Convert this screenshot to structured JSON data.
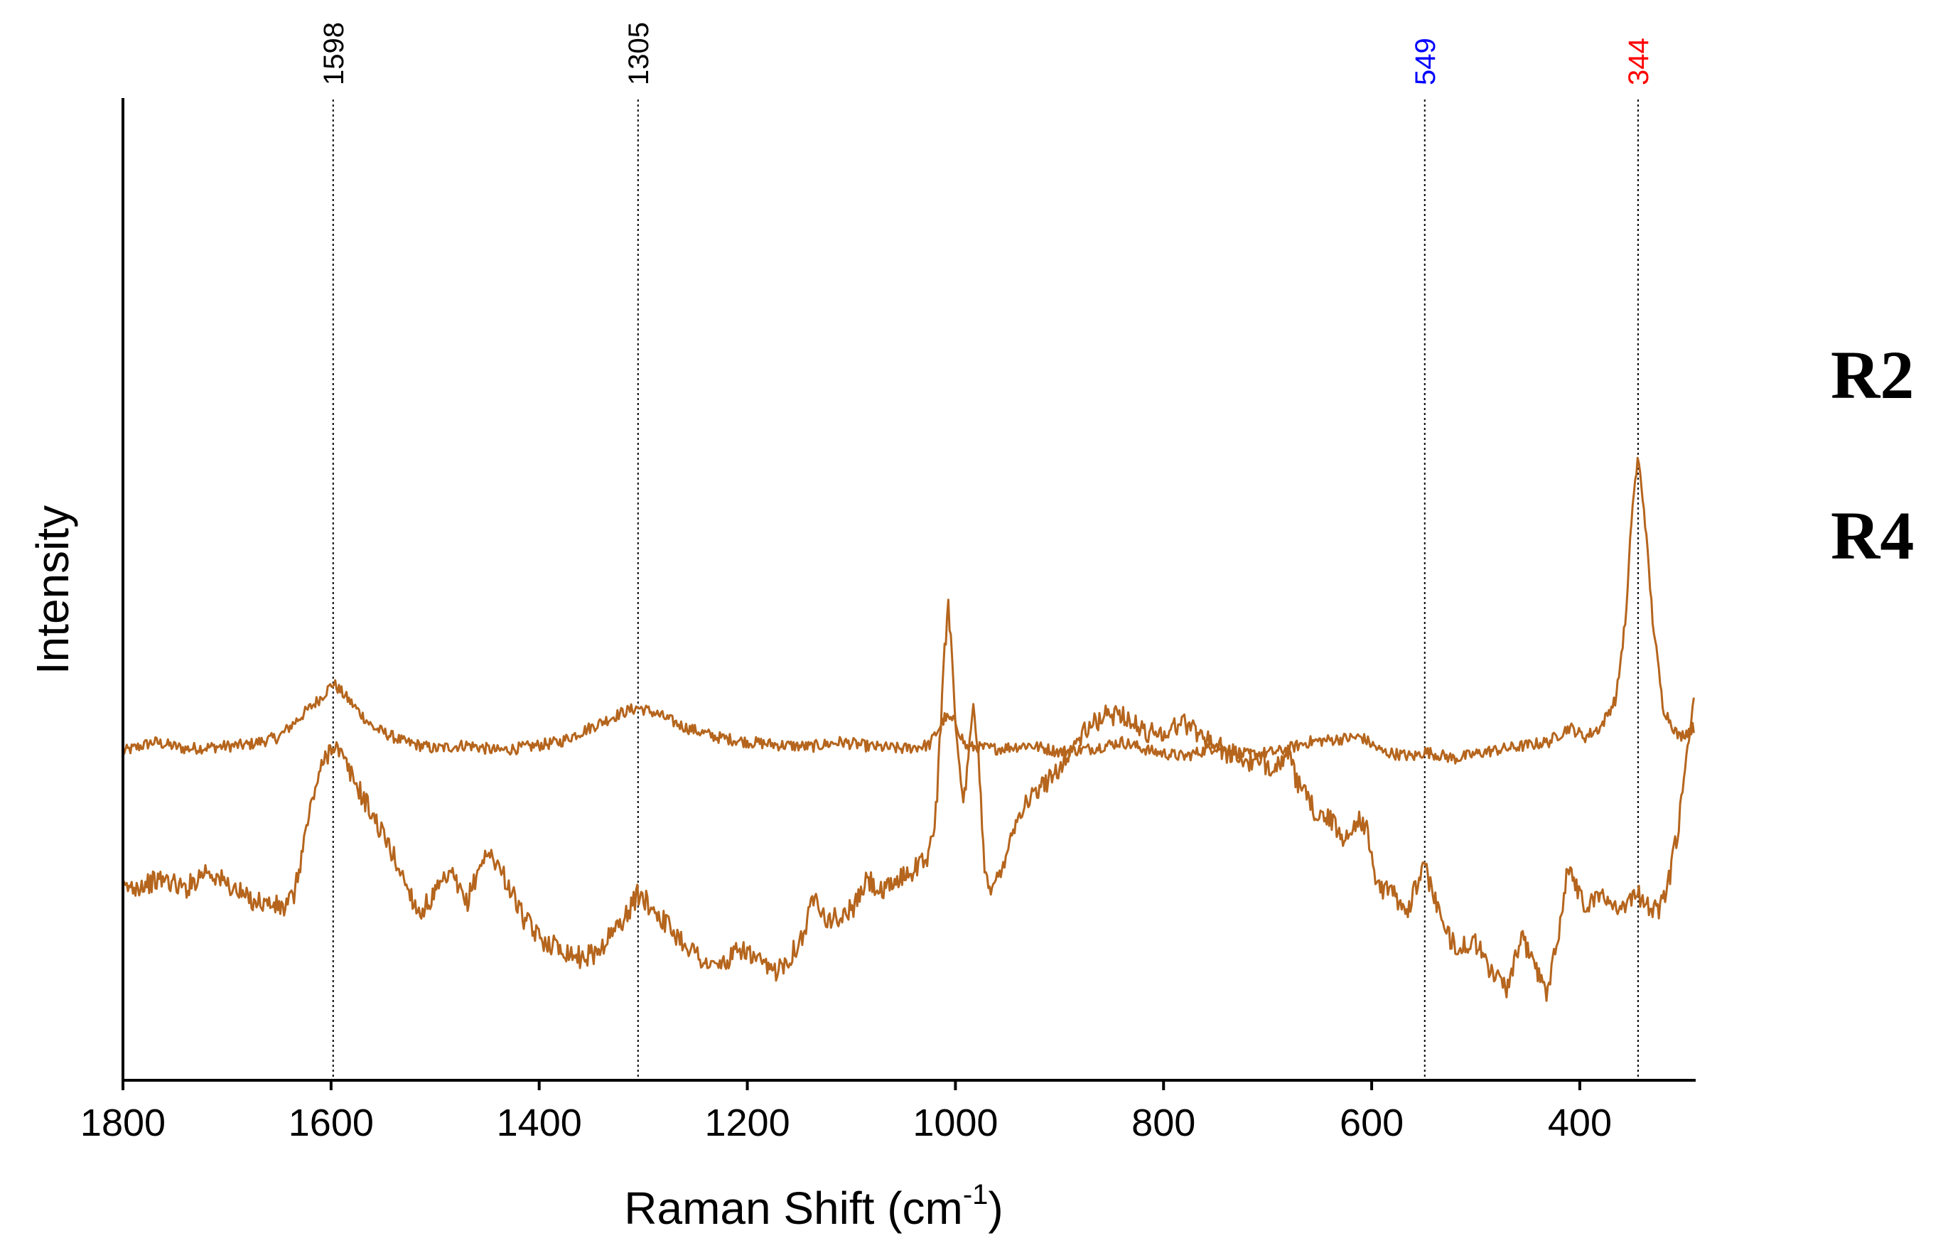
{
  "chart_data": {
    "type": "line",
    "xlabel": "Raman Shift (cm",
    "xlabel_sup": "-1",
    "xlabel_close": ")",
    "ylabel": "Intensity",
    "xlim": [
      1800,
      290
    ],
    "x_reversed": true,
    "y_ticks_shown": false,
    "grid": false,
    "x_ticks": [
      {
        "value": 1800,
        "label": "1800"
      },
      {
        "value": 1600,
        "label": "1600"
      },
      {
        "value": 1400,
        "label": "1400"
      },
      {
        "value": 1200,
        "label": "1200"
      },
      {
        "value": 1000,
        "label": "1000"
      },
      {
        "value": 800,
        "label": "800"
      },
      {
        "value": 600,
        "label": "600"
      },
      {
        "value": 400,
        "label": "400"
      }
    ],
    "peak_markers": [
      {
        "value": 1598,
        "label": "1598",
        "color": "#000000"
      },
      {
        "value": 1305,
        "label": "1305",
        "color": "#000000"
      },
      {
        "value": 549,
        "label": "549",
        "color": "#0000ff"
      },
      {
        "value": 344,
        "label": "344",
        "color": "#ff0000"
      }
    ],
    "line_color": "#b5651d",
    "series": [
      {
        "name": "R2",
        "points": [
          [
            1800,
            0.335
          ],
          [
            1770,
            0.345
          ],
          [
            1740,
            0.338
          ],
          [
            1710,
            0.34
          ],
          [
            1680,
            0.342
          ],
          [
            1650,
            0.35
          ],
          [
            1630,
            0.37
          ],
          [
            1610,
            0.39
          ],
          [
            1598,
            0.405
          ],
          [
            1585,
            0.39
          ],
          [
            1560,
            0.36
          ],
          [
            1530,
            0.345
          ],
          [
            1500,
            0.338
          ],
          [
            1470,
            0.342
          ],
          [
            1440,
            0.336
          ],
          [
            1410,
            0.34
          ],
          [
            1380,
            0.345
          ],
          [
            1350,
            0.36
          ],
          [
            1320,
            0.375
          ],
          [
            1305,
            0.38
          ],
          [
            1290,
            0.375
          ],
          [
            1260,
            0.36
          ],
          [
            1230,
            0.35
          ],
          [
            1200,
            0.345
          ],
          [
            1170,
            0.342
          ],
          [
            1140,
            0.34
          ],
          [
            1110,
            0.345
          ],
          [
            1080,
            0.34
          ],
          [
            1050,
            0.338
          ],
          [
            1025,
            0.342
          ],
          [
            1010,
            0.37
          ],
          [
            1000,
            0.365
          ],
          [
            990,
            0.34
          ],
          [
            960,
            0.338
          ],
          [
            930,
            0.342
          ],
          [
            900,
            0.335
          ],
          [
            870,
            0.338
          ],
          [
            840,
            0.345
          ],
          [
            810,
            0.335
          ],
          [
            780,
            0.33
          ],
          [
            750,
            0.34
          ],
          [
            720,
            0.332
          ],
          [
            690,
            0.335
          ],
          [
            660,
            0.345
          ],
          [
            630,
            0.348
          ],
          [
            610,
            0.35
          ],
          [
            590,
            0.335
          ],
          [
            560,
            0.33
          ],
          [
            549,
            0.335
          ],
          [
            520,
            0.328
          ],
          [
            490,
            0.335
          ],
          [
            460,
            0.34
          ],
          [
            430,
            0.345
          ],
          [
            410,
            0.36
          ],
          [
            395,
            0.35
          ],
          [
            380,
            0.36
          ],
          [
            365,
            0.39
          ],
          [
            355,
            0.48
          ],
          [
            350,
            0.58
          ],
          [
            344,
            0.635
          ],
          [
            338,
            0.58
          ],
          [
            330,
            0.47
          ],
          [
            320,
            0.38
          ],
          [
            305,
            0.35
          ],
          [
            290,
            0.36
          ]
        ]
      },
      {
        "name": "R4",
        "points": [
          [
            1800,
            0.195
          ],
          [
            1780,
            0.2
          ],
          [
            1760,
            0.205
          ],
          [
            1740,
            0.195
          ],
          [
            1720,
            0.215
          ],
          [
            1700,
            0.2
          ],
          [
            1680,
            0.185
          ],
          [
            1660,
            0.18
          ],
          [
            1645,
            0.175
          ],
          [
            1635,
            0.19
          ],
          [
            1625,
            0.25
          ],
          [
            1615,
            0.3
          ],
          [
            1605,
            0.33
          ],
          [
            1598,
            0.345
          ],
          [
            1590,
            0.33
          ],
          [
            1575,
            0.3
          ],
          [
            1560,
            0.27
          ],
          [
            1545,
            0.24
          ],
          [
            1530,
            0.205
          ],
          [
            1515,
            0.17
          ],
          [
            1500,
            0.19
          ],
          [
            1485,
            0.21
          ],
          [
            1470,
            0.18
          ],
          [
            1455,
            0.225
          ],
          [
            1445,
            0.23
          ],
          [
            1430,
            0.2
          ],
          [
            1415,
            0.165
          ],
          [
            1400,
            0.145
          ],
          [
            1380,
            0.135
          ],
          [
            1360,
            0.125
          ],
          [
            1345,
            0.13
          ],
          [
            1330,
            0.15
          ],
          [
            1315,
            0.17
          ],
          [
            1305,
            0.19
          ],
          [
            1290,
            0.175
          ],
          [
            1270,
            0.15
          ],
          [
            1250,
            0.13
          ],
          [
            1235,
            0.115
          ],
          [
            1220,
            0.12
          ],
          [
            1205,
            0.135
          ],
          [
            1190,
            0.12
          ],
          [
            1175,
            0.11
          ],
          [
            1160,
            0.125
          ],
          [
            1145,
            0.15
          ],
          [
            1135,
            0.195
          ],
          [
            1125,
            0.165
          ],
          [
            1110,
            0.165
          ],
          [
            1095,
            0.18
          ],
          [
            1085,
            0.205
          ],
          [
            1070,
            0.19
          ],
          [
            1055,
            0.205
          ],
          [
            1040,
            0.215
          ],
          [
            1025,
            0.23
          ],
          [
            1018,
            0.28
          ],
          [
            1012,
            0.41
          ],
          [
            1007,
            0.49
          ],
          [
            1003,
            0.43
          ],
          [
            997,
            0.32
          ],
          [
            992,
            0.28
          ],
          [
            987,
            0.33
          ],
          [
            983,
            0.38
          ],
          [
            978,
            0.33
          ],
          [
            972,
            0.22
          ],
          [
            965,
            0.19
          ],
          [
            955,
            0.22
          ],
          [
            945,
            0.255
          ],
          [
            935,
            0.28
          ],
          [
            920,
            0.295
          ],
          [
            900,
            0.32
          ],
          [
            880,
            0.35
          ],
          [
            860,
            0.37
          ],
          [
            840,
            0.375
          ],
          [
            820,
            0.355
          ],
          [
            800,
            0.355
          ],
          [
            780,
            0.365
          ],
          [
            760,
            0.35
          ],
          [
            740,
            0.335
          ],
          [
            720,
            0.325
          ],
          [
            700,
            0.32
          ],
          [
            680,
            0.33
          ],
          [
            670,
            0.3
          ],
          [
            655,
            0.275
          ],
          [
            640,
            0.265
          ],
          [
            625,
            0.245
          ],
          [
            612,
            0.27
          ],
          [
            605,
            0.255
          ],
          [
            595,
            0.2
          ],
          [
            580,
            0.19
          ],
          [
            565,
            0.175
          ],
          [
            555,
            0.205
          ],
          [
            549,
            0.215
          ],
          [
            540,
            0.19
          ],
          [
            530,
            0.15
          ],
          [
            515,
            0.135
          ],
          [
            500,
            0.14
          ],
          [
            485,
            0.11
          ],
          [
            470,
            0.095
          ],
          [
            455,
            0.145
          ],
          [
            440,
            0.11
          ],
          [
            432,
            0.085
          ],
          [
            425,
            0.13
          ],
          [
            418,
            0.165
          ],
          [
            412,
            0.215
          ],
          [
            405,
            0.205
          ],
          [
            395,
            0.175
          ],
          [
            385,
            0.19
          ],
          [
            370,
            0.18
          ],
          [
            355,
            0.18
          ],
          [
            344,
            0.19
          ],
          [
            335,
            0.18
          ],
          [
            325,
            0.17
          ],
          [
            315,
            0.2
          ],
          [
            305,
            0.26
          ],
          [
            298,
            0.32
          ],
          [
            292,
            0.38
          ],
          [
            290,
            0.4
          ]
        ]
      }
    ]
  }
}
